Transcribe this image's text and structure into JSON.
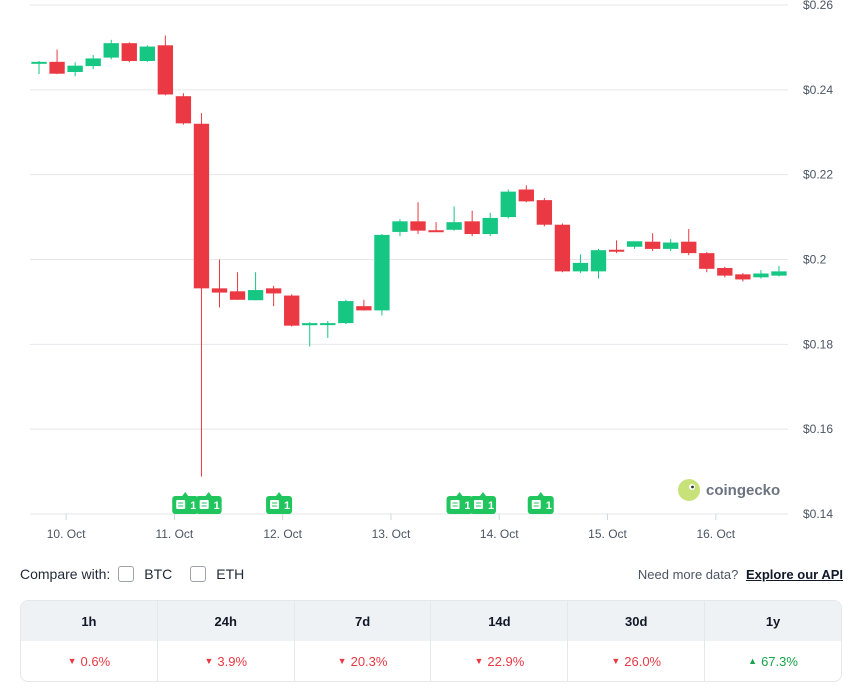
{
  "chart_data": {
    "type": "candlestick",
    "y_ticks": [
      "$0.26",
      "$0.24",
      "$0.22",
      "$0.2",
      "$0.18",
      "$0.16",
      "$0.14"
    ],
    "y_tick_values": [
      0.26,
      0.24,
      0.22,
      0.2,
      0.18,
      0.16,
      0.14
    ],
    "ylim": [
      0.14,
      0.26
    ],
    "x_ticks": [
      {
        "label": "10. Oct",
        "t": 1.5
      },
      {
        "label": "11. Oct",
        "t": 7.5
      },
      {
        "label": "12. Oct",
        "t": 13.5
      },
      {
        "label": "13. Oct",
        "t": 19.5
      },
      {
        "label": "14. Oct",
        "t": 25.5
      },
      {
        "label": "15. Oct",
        "t": 31.5
      },
      {
        "label": "16. Oct",
        "t": 37.5
      }
    ],
    "x_range": [
      -0.5,
      41.5
    ],
    "candles": [
      {
        "t": 0,
        "o": 0.2466,
        "h": 0.2468,
        "l": 0.2437,
        "c": 0.2466
      },
      {
        "t": 1,
        "o": 0.2466,
        "h": 0.2495,
        "l": 0.2437,
        "c": 0.2438
      },
      {
        "t": 2,
        "o": 0.2442,
        "h": 0.2465,
        "l": 0.2432,
        "c": 0.2457
      },
      {
        "t": 3,
        "o": 0.2456,
        "h": 0.2482,
        "l": 0.2449,
        "c": 0.2474
      },
      {
        "t": 4,
        "o": 0.2476,
        "h": 0.2518,
        "l": 0.2472,
        "c": 0.251
      },
      {
        "t": 5,
        "o": 0.251,
        "h": 0.2512,
        "l": 0.2465,
        "c": 0.2468
      },
      {
        "t": 6,
        "o": 0.2468,
        "h": 0.2505,
        "l": 0.2466,
        "c": 0.2502
      },
      {
        "t": 7,
        "o": 0.2505,
        "h": 0.2528,
        "l": 0.2387,
        "c": 0.2389
      },
      {
        "t": 8,
        "o": 0.2385,
        "h": 0.2392,
        "l": 0.2318,
        "c": 0.2321
      },
      {
        "t": 9,
        "o": 0.232,
        "h": 0.2345,
        "l": 0.1488,
        "c": 0.1932
      },
      {
        "t": 10,
        "o": 0.1932,
        "h": 0.2,
        "l": 0.1887,
        "c": 0.1922
      },
      {
        "t": 11,
        "o": 0.1925,
        "h": 0.197,
        "l": 0.1905,
        "c": 0.1905
      },
      {
        "t": 12,
        "o": 0.1904,
        "h": 0.197,
        "l": 0.1904,
        "c": 0.1928
      },
      {
        "t": 13,
        "o": 0.1932,
        "h": 0.1938,
        "l": 0.189,
        "c": 0.192
      },
      {
        "t": 14,
        "o": 0.1915,
        "h": 0.1918,
        "l": 0.1842,
        "c": 0.1844
      },
      {
        "t": 15,
        "o": 0.1845,
        "h": 0.1852,
        "l": 0.1795,
        "c": 0.185
      },
      {
        "t": 16,
        "o": 0.1848,
        "h": 0.1855,
        "l": 0.1815,
        "c": 0.185
      },
      {
        "t": 17,
        "o": 0.185,
        "h": 0.1905,
        "l": 0.1848,
        "c": 0.1902
      },
      {
        "t": 18,
        "o": 0.189,
        "h": 0.1905,
        "l": 0.188,
        "c": 0.188
      },
      {
        "t": 19,
        "o": 0.188,
        "h": 0.206,
        "l": 0.1868,
        "c": 0.2058
      },
      {
        "t": 20,
        "o": 0.2065,
        "h": 0.2095,
        "l": 0.2055,
        "c": 0.209
      },
      {
        "t": 21,
        "o": 0.209,
        "h": 0.2135,
        "l": 0.206,
        "c": 0.2068
      },
      {
        "t": 22,
        "o": 0.2069,
        "h": 0.2088,
        "l": 0.2066,
        "c": 0.2066
      },
      {
        "t": 23,
        "o": 0.207,
        "h": 0.2125,
        "l": 0.2068,
        "c": 0.2088
      },
      {
        "t": 24,
        "o": 0.209,
        "h": 0.2115,
        "l": 0.2055,
        "c": 0.206
      },
      {
        "t": 25,
        "o": 0.206,
        "h": 0.211,
        "l": 0.2055,
        "c": 0.2098
      },
      {
        "t": 26,
        "o": 0.21,
        "h": 0.2165,
        "l": 0.2097,
        "c": 0.216
      },
      {
        "t": 27,
        "o": 0.2165,
        "h": 0.2175,
        "l": 0.2135,
        "c": 0.2137
      },
      {
        "t": 28,
        "o": 0.214,
        "h": 0.2145,
        "l": 0.2078,
        "c": 0.2082
      },
      {
        "t": 29,
        "o": 0.2082,
        "h": 0.2085,
        "l": 0.197,
        "c": 0.1972
      },
      {
        "t": 30,
        "o": 0.1972,
        "h": 0.2012,
        "l": 0.1968,
        "c": 0.1992
      },
      {
        "t": 31,
        "o": 0.1972,
        "h": 0.2025,
        "l": 0.1955,
        "c": 0.2022
      },
      {
        "t": 32,
        "o": 0.2023,
        "h": 0.2045,
        "l": 0.2015,
        "c": 0.202
      },
      {
        "t": 33,
        "o": 0.203,
        "h": 0.204,
        "l": 0.2025,
        "c": 0.2043
      },
      {
        "t": 34,
        "o": 0.2042,
        "h": 0.2062,
        "l": 0.202,
        "c": 0.2025
      },
      {
        "t": 35,
        "o": 0.2025,
        "h": 0.2048,
        "l": 0.202,
        "c": 0.204
      },
      {
        "t": 36,
        "o": 0.2042,
        "h": 0.2072,
        "l": 0.201,
        "c": 0.2015
      },
      {
        "t": 37,
        "o": 0.2015,
        "h": 0.2018,
        "l": 0.197,
        "c": 0.1978
      },
      {
        "t": 38,
        "o": 0.198,
        "h": 0.1983,
        "l": 0.1958,
        "c": 0.1962
      },
      {
        "t": 39,
        "o": 0.1965,
        "h": 0.1968,
        "l": 0.1948,
        "c": 0.1953
      },
      {
        "t": 40,
        "o": 0.1958,
        "h": 0.1975,
        "l": 0.1955,
        "c": 0.1967
      },
      {
        "t": 41,
        "o": 0.1962,
        "h": 0.1985,
        "l": 0.196,
        "c": 0.1972
      }
    ],
    "news_markers": [
      {
        "t": 8.1,
        "count": "1"
      },
      {
        "t": 9.4,
        "count": "1"
      },
      {
        "t": 13.3,
        "count": "1"
      },
      {
        "t": 23.3,
        "count": "1"
      },
      {
        "t": 24.6,
        "count": "1"
      },
      {
        "t": 27.8,
        "count": "1"
      }
    ],
    "watermark": "coingecko",
    "colors": {
      "up": "#16c784",
      "down": "#ea3943",
      "grid": "#e5e7eb",
      "marker": "#21c55d"
    }
  },
  "compare": {
    "label": "Compare with:",
    "options": [
      "BTC",
      "ETH"
    ],
    "note": "Need more data?",
    "link": "Explore our API"
  },
  "performance": [
    {
      "period": "1h",
      "value": "0.6%",
      "dir": "down"
    },
    {
      "period": "24h",
      "value": "3.9%",
      "dir": "down"
    },
    {
      "period": "7d",
      "value": "20.3%",
      "dir": "down"
    },
    {
      "period": "14d",
      "value": "22.9%",
      "dir": "down"
    },
    {
      "period": "30d",
      "value": "26.0%",
      "dir": "down"
    },
    {
      "period": "1y",
      "value": "67.3%",
      "dir": "up"
    }
  ]
}
